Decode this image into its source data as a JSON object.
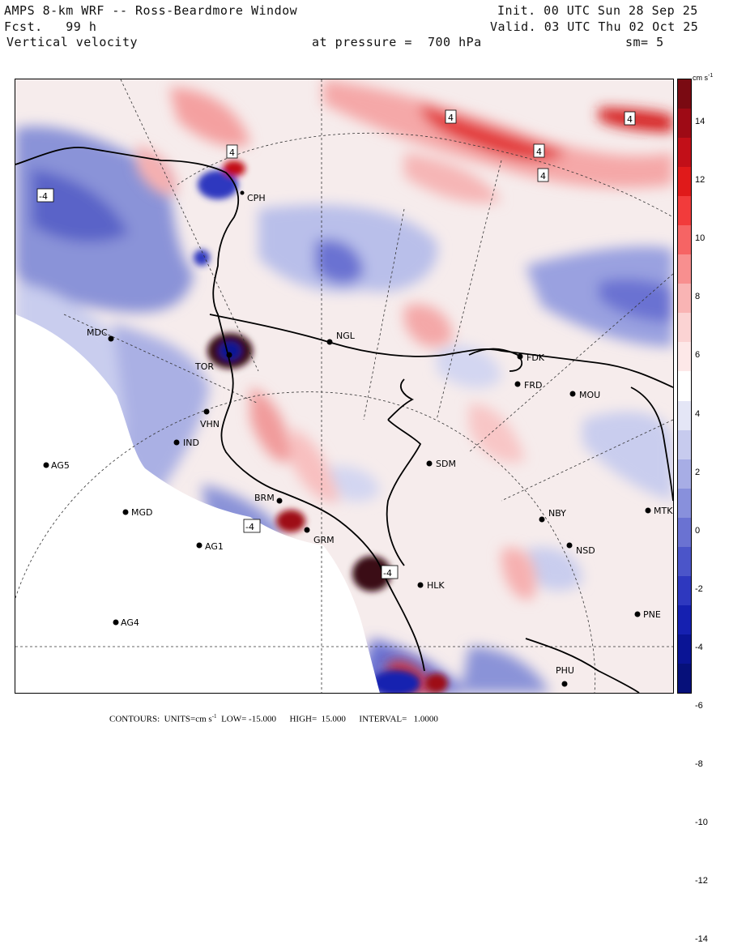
{
  "header": {
    "title": "AMPS 8-km WRF -- Ross-Beardmore Window",
    "forecast": "Fcst.   99 h",
    "field": "Vertical velocity",
    "init": "Init. 00 UTC Sun 28 Sep 25",
    "valid": "Valid. 03 UTC Thu 02 Oct 25",
    "pressure": "at pressure =  700 hPa",
    "smoothing": "sm= 5"
  },
  "colorbar": {
    "units": "cm s",
    "units_exp": "-1",
    "ticks": [
      "14",
      "12",
      "10",
      "8",
      "6",
      "4",
      "2",
      "0",
      "-2",
      "-4",
      "-6",
      "-8",
      "-10",
      "-12",
      "-14"
    ],
    "colors": [
      "#7a0a12",
      "#9e0a15",
      "#c20f18",
      "#e01a1a",
      "#f23b3b",
      "#f66464",
      "#f88f8f",
      "#f9b4b4",
      "#fbd3d3",
      "#fde8e8",
      "#ffffff",
      "#e4e6f6",
      "#c7cbee",
      "#a7ade5",
      "#8890dc",
      "#6a72d2",
      "#4b55c9",
      "#2e38bf",
      "#1520b0",
      "#0a1495",
      "#06107a"
    ]
  },
  "stations": [
    {
      "id": "MDC",
      "label": "MDC"
    },
    {
      "id": "NGL",
      "label": "NGL"
    },
    {
      "id": "FDK",
      "label": "FDK"
    },
    {
      "id": "FRD",
      "label": "FRD"
    },
    {
      "id": "MOU",
      "label": "MOU"
    },
    {
      "id": "TOR",
      "label": "TOR"
    },
    {
      "id": "VHN",
      "label": "VHN"
    },
    {
      "id": "IND",
      "label": "IND"
    },
    {
      "id": "AG5",
      "label": "AG5"
    },
    {
      "id": "SDM",
      "label": "SDM"
    },
    {
      "id": "MGD",
      "label": "MGD"
    },
    {
      "id": "BRM",
      "label": "BRM"
    },
    {
      "id": "NBY",
      "label": "NBY"
    },
    {
      "id": "MTK",
      "label": "MTK"
    },
    {
      "id": "AG1",
      "label": "AG1"
    },
    {
      "id": "GRM",
      "label": "GRM"
    },
    {
      "id": "NSD",
      "label": "NSD"
    },
    {
      "id": "HLK",
      "label": "HLK"
    },
    {
      "id": "AG4",
      "label": "AG4"
    },
    {
      "id": "PNE",
      "label": "PNE"
    },
    {
      "id": "PHU",
      "label": "PHU"
    },
    {
      "id": "CPH",
      "label": "CPH"
    }
  ],
  "contour_labels": [
    "4",
    "4",
    "4",
    "4",
    "4",
    "-4",
    "-4",
    "-4"
  ],
  "footer": {
    "text_a": "CONTOURS:  UNITS=cm s",
    "exp": "-1",
    "text_b": "  LOW= -15.000      HIGH=  15.000      INTERVAL=   1.0000"
  }
}
